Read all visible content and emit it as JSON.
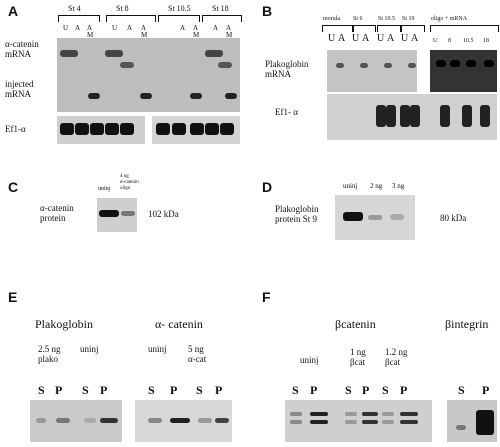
{
  "panel_a": {
    "letter": "A",
    "stages": [
      "St 4",
      "St 8",
      "St 10.5",
      "St 18"
    ],
    "lanes": [
      [
        [
          "U"
        ],
        [
          "A"
        ],
        [
          "A",
          "M"
        ]
      ],
      [
        [
          "U"
        ],
        [
          "A"
        ],
        [
          "A",
          "M"
        ]
      ],
      [
        [
          "A"
        ],
        [
          "A",
          "M"
        ]
      ],
      [
        [
          "A"
        ],
        [
          "A",
          "M"
        ]
      ]
    ],
    "row_labels": [
      [
        "α-catenin",
        "mRNA"
      ],
      [
        "injected",
        "mRNA"
      ],
      [
        "Ef1-α"
      ]
    ]
  },
  "panel_b": {
    "letter": "B",
    "stages": [
      "morula",
      "St 6",
      "St 10.5",
      "St 19",
      "oligo + mRNA"
    ],
    "lanes": [
      [
        "U",
        "A"
      ],
      [
        "U",
        "A"
      ],
      [
        "U",
        "A"
      ],
      [
        "U",
        "A"
      ],
      [
        "U",
        "8",
        "10.5",
        "18"
      ]
    ],
    "row_labels": [
      [
        "Plakoglobin",
        "mRNA"
      ],
      [
        "Ef1- α"
      ]
    ]
  },
  "panel_c": {
    "letter": "C",
    "lanes": [
      [
        "uninj"
      ],
      [
        "4 ng",
        "α-catenin",
        "oligo"
      ]
    ],
    "row_label": [
      "α-catenin",
      "protein"
    ],
    "size": "102 kDa"
  },
  "panel_d": {
    "letter": "D",
    "lanes": [
      "uninj",
      "2 ng",
      "3 ng"
    ],
    "row_label": [
      "Plakoglobin",
      "protein St 9"
    ],
    "size": "80 kDa"
  },
  "panel_e": {
    "letter": "E",
    "groups": [
      "Plakoglobin",
      "α- catenin"
    ],
    "conditions": [
      [
        "2.5 ng",
        "plako"
      ],
      [
        "uninj"
      ],
      [
        "uninj"
      ],
      [
        "5 ng",
        "α-cat"
      ]
    ],
    "fractions": [
      [
        "S",
        "P"
      ],
      [
        "S",
        "P"
      ],
      [
        "S",
        "P"
      ],
      [
        "S",
        "P"
      ]
    ]
  },
  "panel_f": {
    "letter": "F",
    "groups": [
      "βcatenin",
      "βintegrin"
    ],
    "conditions": [
      [
        "uninj"
      ],
      [
        "1 ng",
        "βcat"
      ],
      [
        "1.2 ng",
        "βcat"
      ]
    ],
    "fractions": [
      [
        "S",
        "P"
      ],
      [
        "S",
        "P"
      ],
      [
        "S",
        "P"
      ],
      [
        "S",
        "P"
      ]
    ]
  }
}
